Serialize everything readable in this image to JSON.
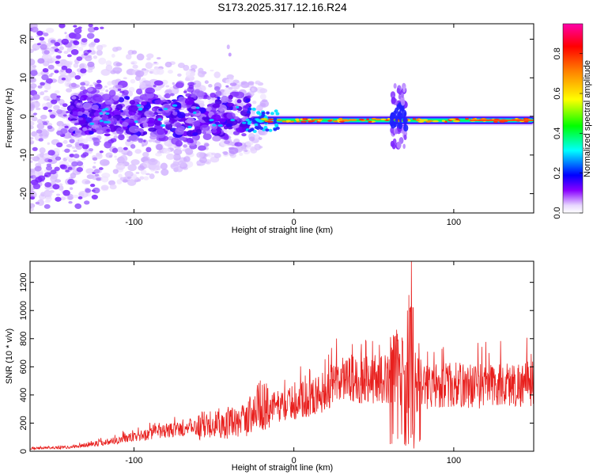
{
  "title": "S173.2025.317.12.16.R24",
  "chart_data": [
    {
      "type": "heatmap",
      "name": "spectrogram",
      "xlabel": "Height of straight line (km)",
      "ylabel": "Frequency (Hz)",
      "xlim": [
        -165,
        150
      ],
      "ylim": [
        -25,
        24
      ],
      "xticks": [
        -100,
        0,
        100
      ],
      "xtick_labels": [
        "-100",
        "0",
        "100"
      ],
      "yticks": [
        20,
        10,
        0,
        -10,
        -20
      ],
      "ytick_labels": [
        "20",
        "10",
        "0",
        "-10",
        "-20"
      ],
      "colorbar": {
        "label": "Normalized spectral amplitude",
        "range": [
          0,
          0.95
        ],
        "ticks": [
          0.0,
          0.2,
          0.4,
          0.6,
          0.8
        ],
        "tick_labels": [
          "0.0",
          "0.2",
          "0.4",
          "0.6",
          "0.8"
        ],
        "colormap": [
          "#ffffff",
          "#8800ff",
          "#0000ff",
          "#00ffff",
          "#00ff00",
          "#ffff00",
          "#ff8000",
          "#ff0000",
          "#ff00aa"
        ]
      },
      "features": {
        "carrier_line_hz": -1,
        "carrier_start_km": -28,
        "disturbance_km": 65,
        "noise_region_km": [
          -165,
          -28
        ]
      }
    },
    {
      "type": "line",
      "name": "snr",
      "xlabel": "Height of straight line (km)",
      "ylabel": "SNR (10 * v/v)",
      "xlim": [
        -165,
        150
      ],
      "ylim": [
        0,
        1350
      ],
      "xticks": [
        -100,
        0,
        100
      ],
      "xtick_labels": [
        "-100",
        "0",
        "100"
      ],
      "yticks": [
        0,
        200,
        400,
        600,
        800,
        1000,
        1200
      ],
      "ytick_labels": [
        "0",
        "200",
        "400",
        "600",
        "800",
        "1000",
        "1200"
      ],
      "color": "#e8201e",
      "anchors": [
        {
          "x": -165,
          "y": 20
        },
        {
          "x": -140,
          "y": 28
        },
        {
          "x": -120,
          "y": 60
        },
        {
          "x": -100,
          "y": 100
        },
        {
          "x": -80,
          "y": 145
        },
        {
          "x": -60,
          "y": 170
        },
        {
          "x": -50,
          "y": 210
        },
        {
          "x": -40,
          "y": 190
        },
        {
          "x": -30,
          "y": 220
        },
        {
          "x": -22,
          "y": 330
        },
        {
          "x": -15,
          "y": 310
        },
        {
          "x": -5,
          "y": 330
        },
        {
          "x": 5,
          "y": 360
        },
        {
          "x": 15,
          "y": 400
        },
        {
          "x": 25,
          "y": 470
        },
        {
          "x": 35,
          "y": 510
        },
        {
          "x": 50,
          "y": 520
        },
        {
          "x": 60,
          "y": 505
        },
        {
          "x": 67,
          "y": 470
        },
        {
          "x": 70,
          "y": 350
        },
        {
          "x": 73,
          "y": 600
        },
        {
          "x": 75,
          "y": 250
        },
        {
          "x": 78,
          "y": 430
        },
        {
          "x": 85,
          "y": 470
        },
        {
          "x": 100,
          "y": 470
        },
        {
          "x": 120,
          "y": 465
        },
        {
          "x": 150,
          "y": 480
        }
      ],
      "spikes": [
        {
          "x": 73.5,
          "y": 1350
        },
        {
          "x": 72,
          "y": 1110
        },
        {
          "x": 74.5,
          "y": 1020
        },
        {
          "x": 71,
          "y": 1000
        },
        {
          "x": 76,
          "y": 700
        },
        {
          "x": 75,
          "y": 20
        },
        {
          "x": 68,
          "y": 780
        },
        {
          "x": 69.5,
          "y": 140
        }
      ]
    }
  ]
}
